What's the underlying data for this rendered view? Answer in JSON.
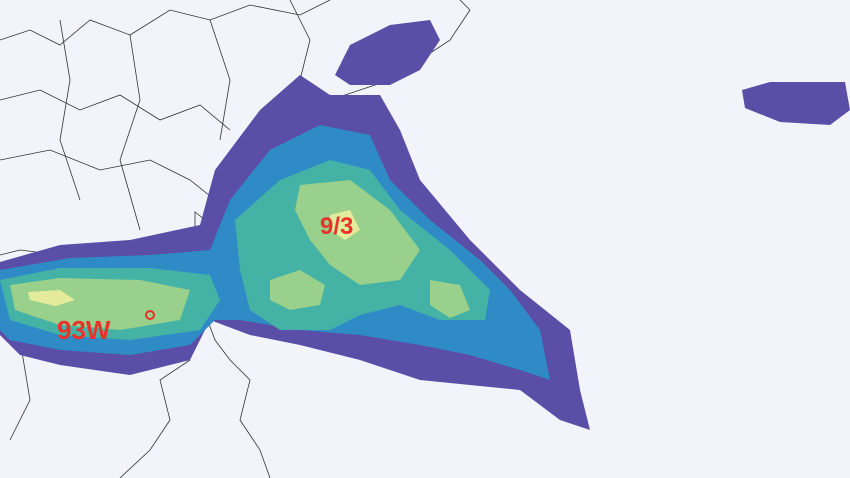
{
  "map": {
    "labels": {
      "storm_date": "9/3",
      "storm_id": "93W"
    },
    "colors": {
      "background": "#f3f3fb",
      "level1": "#5a4ea6",
      "level2": "#2f8bc6",
      "level3": "#44b3a6",
      "level4": "#98d08c",
      "level5": "#e4ec9c",
      "label": "#e8322a",
      "coastline": "#333333"
    }
  }
}
